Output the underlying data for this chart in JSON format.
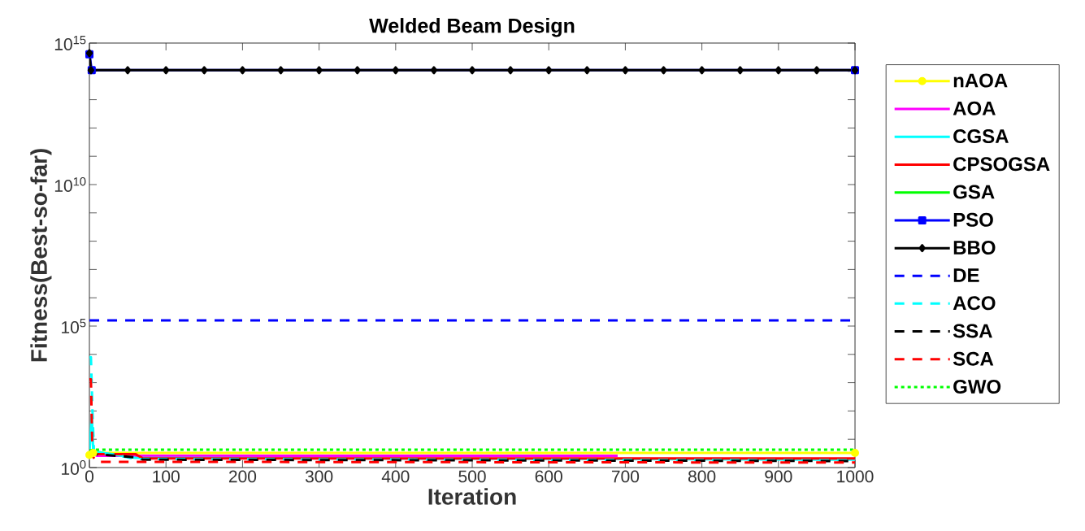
{
  "chart_data": {
    "type": "line",
    "title": "Welded Beam Design",
    "xlabel": "Iteration",
    "ylabel": "Fitness(Best-so-far)",
    "log": true,
    "grid": false,
    "legend": "right",
    "xlim": [
      0,
      1000
    ],
    "xticks": [
      0,
      100,
      200,
      300,
      400,
      500,
      600,
      700,
      800,
      900,
      1000
    ],
    "ylim": [
      1,
      1000000000000000.0
    ],
    "yticks": [
      {
        "value": 1,
        "label": "10$^{0}$"
      },
      {
        "value": 10,
        "label": null
      },
      {
        "value": 100,
        "label": null
      },
      {
        "value": 1000,
        "label": null
      },
      {
        "value": 10000,
        "label": null
      },
      {
        "value": 100000,
        "label": "10$^{5}$"
      },
      {
        "value": 1000000.0,
        "label": null
      },
      {
        "value": 10000000.0,
        "label": null
      },
      {
        "value": 100000000.0,
        "label": null
      },
      {
        "value": 1000000000.0,
        "label": null
      },
      {
        "value": 10000000000.0,
        "label": "10$^{10}$"
      },
      {
        "value": 100000000000.0,
        "label": null
      },
      {
        "value": 1000000000000.0,
        "label": null
      },
      {
        "value": 10000000000000.0,
        "label": null
      },
      {
        "value": 100000000000000.0,
        "label": null
      },
      {
        "value": 1000000000000000.0,
        "label": "10$^{15}$"
      }
    ],
    "series": [
      {
        "name": "nAOA",
        "color": "#ffff00",
        "marker": "circle",
        "line_style": "solid",
        "x": [
          0,
          5,
          1000
        ],
        "values": [
          2.8,
          3.3,
          3.3
        ]
      },
      {
        "name": "AOA",
        "color": "#ff00ff",
        "marker": "none",
        "line_style": "solid",
        "x": [
          5,
          10,
          690
        ],
        "values": [
          3.0,
          2.6,
          2.6
        ]
      },
      {
        "name": "CGSA",
        "color": "#00ffff",
        "marker": "none",
        "line_style": "solid",
        "x": [
          0,
          3,
          5,
          20,
          60,
          1000
        ],
        "values": [
          3,
          70,
          4,
          3.2,
          2.2,
          1.9
        ]
      },
      {
        "name": "CPSOGSA",
        "color": "#ff0000",
        "marker": "none",
        "line_style": "solid",
        "x": [
          0,
          10,
          60,
          70,
          1000
        ],
        "values": [
          3.5,
          3.0,
          3.0,
          2.1,
          2.1
        ]
      },
      {
        "name": "GSA",
        "color": "#00ff00",
        "marker": "none",
        "line_style": "solid",
        "values": [
          null
        ]
      },
      {
        "name": "PSO",
        "color": "#0000ff",
        "marker": "square",
        "line_style": "solid",
        "x": [
          0,
          3,
          1000
        ],
        "values": [
          400000000000000.0,
          110000000000000.0,
          110000000000000.0
        ]
      },
      {
        "name": "BBO",
        "color": "#000000",
        "marker": "diamond",
        "line_style": "solid",
        "x": [
          0,
          2,
          50,
          100,
          150,
          200,
          250,
          300,
          350,
          400,
          450,
          500,
          550,
          600,
          650,
          700,
          750,
          800,
          850,
          900,
          950,
          1000
        ],
        "values": [
          440000000000000.0,
          110000000000000.0,
          110000000000000.0,
          110000000000000.0,
          110000000000000.0,
          110000000000000.0,
          110000000000000.0,
          110000000000000.0,
          110000000000000.0,
          110000000000000.0,
          110000000000000.0,
          110000000000000.0,
          110000000000000.0,
          110000000000000.0,
          110000000000000.0,
          110000000000000.0,
          110000000000000.0,
          110000000000000.0,
          110000000000000.0,
          110000000000000.0,
          110000000000000.0,
          110000000000000.0
        ]
      },
      {
        "name": "DE",
        "color": "#0000ff",
        "marker": "none",
        "line_style": "dashed",
        "x": [
          0,
          1000
        ],
        "values": [
          160000,
          160000
        ]
      },
      {
        "name": "ACO",
        "color": "#00ffff",
        "marker": "none",
        "line_style": "dashed",
        "x": [
          0,
          2,
          4,
          6,
          30,
          60,
          1000
        ],
        "values": [
          8000,
          8000,
          100,
          3.5,
          3,
          2,
          1.8
        ]
      },
      {
        "name": "SSA",
        "color": "#000000",
        "marker": "none",
        "line_style": "dashed",
        "x": [
          0,
          5,
          60,
          70,
          1000
        ],
        "values": [
          4,
          3,
          2.3,
          1.9,
          1.7
        ]
      },
      {
        "name": "SCA",
        "color": "#ff0000",
        "marker": "none",
        "line_style": "dashed",
        "x": [
          0,
          2,
          4,
          10,
          1000
        ],
        "values": [
          1300,
          1300,
          2.5,
          1.6,
          1.5
        ]
      },
      {
        "name": "GWO",
        "color": "#00ff00",
        "marker": "none",
        "line_style": "dotted",
        "x": [
          0,
          5,
          1000
        ],
        "values": [
          4,
          4.3,
          4.3
        ]
      }
    ]
  }
}
